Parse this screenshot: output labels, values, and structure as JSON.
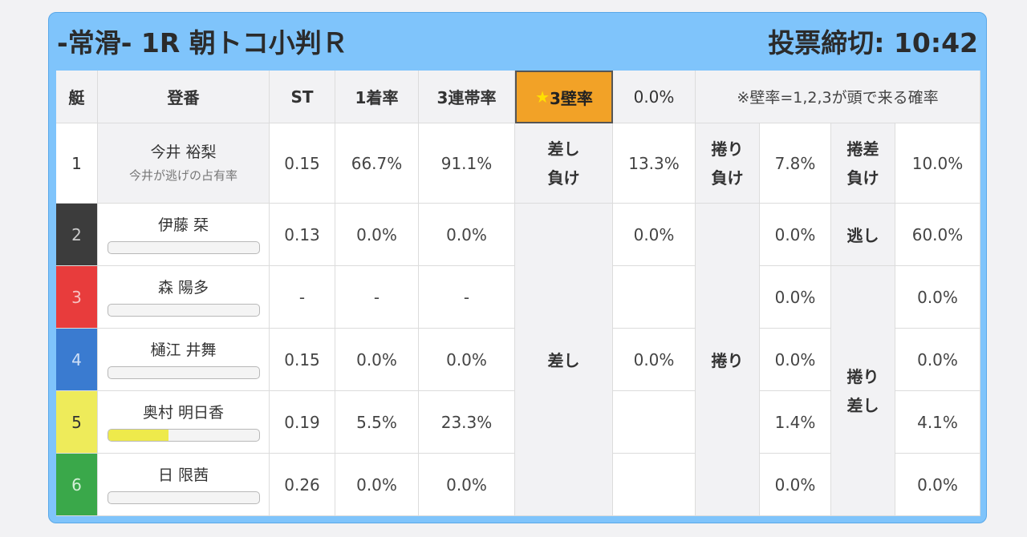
{
  "race": {
    "title": "-常滑- 1R 朝トコ小判Ｒ",
    "deadline": "投票締切: 10:42"
  },
  "header": {
    "boat": "艇",
    "register": "登番",
    "st": "ST",
    "first_rate": "1着率",
    "top3_rate": "3連帯率",
    "star": "★",
    "wall_label": "3壁率",
    "wall_value": "0.0%",
    "note": "※壁率=1,2,3が頭で来る確率"
  },
  "rows": [
    {
      "boat": "1",
      "name": "今井 裕梨",
      "sub": "今井が逃げの占有率",
      "st": "0.15",
      "first": "66.7%",
      "top3": "91.1%"
    },
    {
      "boat": "2",
      "name": "伊藤 栞",
      "st": "0.13",
      "first": "0.0%",
      "top3": "0.0%",
      "bar": 0
    },
    {
      "boat": "3",
      "name": "森 陽多",
      "st": "-",
      "first": "-",
      "top3": "-",
      "bar": 0
    },
    {
      "boat": "4",
      "name": "樋江 井舞",
      "st": "0.15",
      "first": "0.0%",
      "top3": "0.0%",
      "bar": 0
    },
    {
      "boat": "5",
      "name": "奥村 明日香",
      "st": "0.19",
      "first": "5.5%",
      "top3": "23.3%",
      "bar": 0.4
    },
    {
      "boat": "6",
      "name": "日 限茜",
      "st": "0.26",
      "first": "0.0%",
      "top3": "0.0%",
      "bar": 0
    }
  ],
  "kimarite": {
    "sashi_make_1": "差し",
    "sashi_make_2": "負け",
    "sashi_make_val": "13.3%",
    "makuri_make_1": "捲り",
    "makuri_make_2": "負け",
    "makuri_make_val": "7.8%",
    "makurizashi_make_1": "捲差",
    "makurizashi_make_2": "負け",
    "makurizashi_make_val": "10.0%",
    "sashi": "差し",
    "sashi_r2": "0.0%",
    "sashi_r4": "0.0%",
    "makuri": "捲り",
    "makuri_r2": "0.0%",
    "makuri_r3": "0.0%",
    "makuri_r4": "0.0%",
    "makuri_r5": "1.4%",
    "makuri_r6": "0.0%",
    "nige": "逃し",
    "nige_val": "60.0%",
    "makurizashi_1": "捲り",
    "makurizashi_2": "差し",
    "mz_r3": "0.0%",
    "mz_r4": "0.0%",
    "mz_r5": "4.1%",
    "mz_r6": "0.0%"
  }
}
